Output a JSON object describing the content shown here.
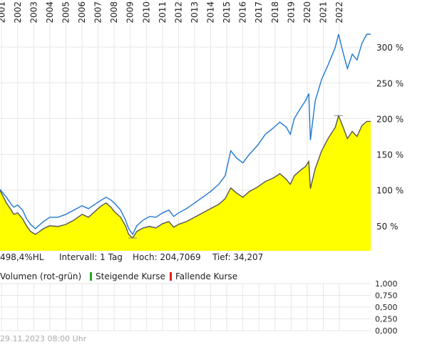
{
  "chart_data": [
    {
      "type": "area",
      "x_label_rotation": "vertical",
      "x_ticks": [
        "2001",
        "2002",
        "2003",
        "2004",
        "2005",
        "2006",
        "2007",
        "2008",
        "2009",
        "2010",
        "2011",
        "2012",
        "2013",
        "2014",
        "2015",
        "2016",
        "2017",
        "2018",
        "2019",
        "2020",
        "2021",
        "2022"
      ],
      "x_range": [
        2000.9,
        2023.95
      ],
      "y_ticks": [
        "50 %",
        "100 %",
        "150 %",
        "200 %",
        "250 %",
        "300 %"
      ],
      "y_tick_values": [
        50,
        100,
        150,
        200,
        250,
        300
      ],
      "y_range": [
        15,
        330
      ],
      "grid": true,
      "series": [
        {
          "style": "filled-area",
          "color": "#555555",
          "fill": "#ffff00",
          "points": [
            [
              2000.9,
              100
            ],
            [
              2001.0,
              95
            ],
            [
              2001.3,
              82
            ],
            [
              2001.6,
              72
            ],
            [
              2001.75,
              66
            ],
            [
              2002.0,
              68
            ],
            [
              2002.3,
              60
            ],
            [
              2002.55,
              50
            ],
            [
              2002.8,
              42
            ],
            [
              2003.1,
              38
            ],
            [
              2003.3,
              41
            ],
            [
              2003.6,
              46
            ],
            [
              2004.0,
              50
            ],
            [
              2004.5,
              49
            ],
            [
              2005.0,
              52
            ],
            [
              2005.5,
              58
            ],
            [
              2006.0,
              66
            ],
            [
              2006.4,
              62
            ],
            [
              2006.8,
              70
            ],
            [
              2007.2,
              78
            ],
            [
              2007.5,
              82
            ],
            [
              2007.8,
              76
            ],
            [
              2008.0,
              70
            ],
            [
              2008.4,
              62
            ],
            [
              2008.7,
              50
            ],
            [
              2008.9,
              38
            ],
            [
              2009.15,
              33
            ],
            [
              2009.4,
              42
            ],
            [
              2009.8,
              47
            ],
            [
              2010.2,
              49
            ],
            [
              2010.6,
              47
            ],
            [
              2011.0,
              53
            ],
            [
              2011.4,
              56
            ],
            [
              2011.7,
              48
            ],
            [
              2012.0,
              52
            ],
            [
              2012.5,
              56
            ],
            [
              2013.0,
              62
            ],
            [
              2013.5,
              68
            ],
            [
              2014.0,
              74
            ],
            [
              2014.5,
              80
            ],
            [
              2014.9,
              88
            ],
            [
              2015.25,
              103
            ],
            [
              2015.6,
              96
            ],
            [
              2016.0,
              90
            ],
            [
              2016.4,
              98
            ],
            [
              2016.9,
              104
            ],
            [
              2017.4,
              112
            ],
            [
              2017.9,
              117
            ],
            [
              2018.3,
              123
            ],
            [
              2018.7,
              115
            ],
            [
              2018.95,
              108
            ],
            [
              2019.2,
              120
            ],
            [
              2019.6,
              128
            ],
            [
              2019.9,
              133
            ],
            [
              2020.1,
              140
            ],
            [
              2020.2,
              102
            ],
            [
              2020.5,
              130
            ],
            [
              2020.9,
              155
            ],
            [
              2021.3,
              172
            ],
            [
              2021.75,
              188
            ],
            [
              2021.95,
              204
            ],
            [
              2022.2,
              190
            ],
            [
              2022.5,
              172
            ],
            [
              2022.8,
              182
            ],
            [
              2023.1,
              175
            ],
            [
              2023.4,
              190
            ],
            [
              2023.7,
              196
            ],
            [
              2023.95,
              196
            ]
          ]
        },
        {
          "style": "line",
          "color": "#1f78d1",
          "points": [
            [
              2000.9,
              101
            ],
            [
              2001.0,
              98
            ],
            [
              2001.3,
              90
            ],
            [
              2001.6,
              80
            ],
            [
              2001.75,
              76
            ],
            [
              2002.0,
              79
            ],
            [
              2002.3,
              72
            ],
            [
              2002.55,
              60
            ],
            [
              2002.8,
              52
            ],
            [
              2003.1,
              46
            ],
            [
              2003.3,
              50
            ],
            [
              2003.6,
              56
            ],
            [
              2004.0,
              62
            ],
            [
              2004.5,
              62
            ],
            [
              2005.0,
              66
            ],
            [
              2005.5,
              72
            ],
            [
              2006.0,
              78
            ],
            [
              2006.4,
              74
            ],
            [
              2006.8,
              80
            ],
            [
              2007.2,
              86
            ],
            [
              2007.5,
              90
            ],
            [
              2007.8,
              86
            ],
            [
              2008.0,
              82
            ],
            [
              2008.4,
              72
            ],
            [
              2008.7,
              58
            ],
            [
              2008.9,
              46
            ],
            [
              2009.15,
              38
            ],
            [
              2009.4,
              50
            ],
            [
              2009.8,
              58
            ],
            [
              2010.2,
              63
            ],
            [
              2010.6,
              62
            ],
            [
              2011.0,
              68
            ],
            [
              2011.4,
              72
            ],
            [
              2011.7,
              63
            ],
            [
              2012.0,
              68
            ],
            [
              2012.5,
              74
            ],
            [
              2013.0,
              82
            ],
            [
              2013.5,
              90
            ],
            [
              2014.0,
              98
            ],
            [
              2014.5,
              108
            ],
            [
              2014.9,
              120
            ],
            [
              2015.25,
              155
            ],
            [
              2015.6,
              145
            ],
            [
              2016.0,
              138
            ],
            [
              2016.4,
              150
            ],
            [
              2016.9,
              162
            ],
            [
              2017.4,
              178
            ],
            [
              2017.9,
              187
            ],
            [
              2018.3,
              195
            ],
            [
              2018.7,
              188
            ],
            [
              2018.95,
              178
            ],
            [
              2019.2,
              200
            ],
            [
              2019.6,
              215
            ],
            [
              2019.9,
              225
            ],
            [
              2020.1,
              235
            ],
            [
              2020.2,
              170
            ],
            [
              2020.5,
              225
            ],
            [
              2020.9,
              255
            ],
            [
              2021.3,
              275
            ],
            [
              2021.75,
              300
            ],
            [
              2021.95,
              318
            ],
            [
              2022.2,
              295
            ],
            [
              2022.5,
              270
            ],
            [
              2022.8,
              290
            ],
            [
              2023.1,
              282
            ],
            [
              2023.4,
              305
            ],
            [
              2023.7,
              318
            ],
            [
              2023.95,
              318
            ]
          ]
        }
      ]
    },
    {
      "type": "bar",
      "y_ticks": [
        "0,000",
        "0,250",
        "0,500",
        "0,750",
        "1,000"
      ],
      "y_tick_values": [
        0,
        0.25,
        0.5,
        0.75,
        1.0
      ],
      "y_range": [
        0,
        1.0
      ],
      "grid": true,
      "values": []
    }
  ],
  "info": {
    "range_label": "498,4%HL",
    "interval_label": "Intervall: 1 Tag",
    "high_label": "Hoch: 204,7069",
    "low_label": "Tief:  34,207"
  },
  "volume_legend": {
    "title": "Volumen (rot-grün)",
    "rising": "Steigende Kurse",
    "falling": "Fallende Kurse",
    "rising_color": "#22aa22",
    "falling_color": "#dd2222"
  },
  "timestamp": "29.11.2023 08:00 Uhr",
  "colors": {
    "grid": "#e6e6e6",
    "area_fill": "#ffff00",
    "area_line": "#555555",
    "compare_line": "#1f78d1"
  }
}
